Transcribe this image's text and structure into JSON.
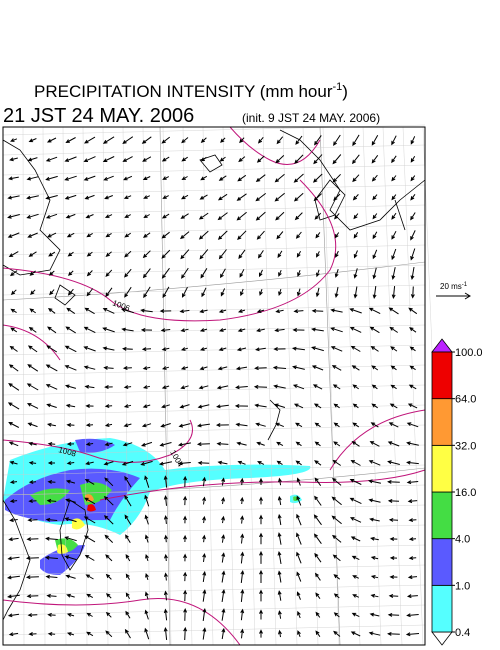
{
  "title": {
    "main": "PRECIPITATION INTENSITY (mm hour",
    "sup": "-1",
    "end": ")"
  },
  "valid_time": "21 JST 24 MAY. 2006",
  "init_time": "(init. 9 JST 24 MAY. 2006)",
  "vector_reference": {
    "text": "20 ms",
    "sup": "-1"
  },
  "isobar_labels": [
    "1006",
    "1008",
    "1004"
  ],
  "colorbar": {
    "levels": [
      {
        "value": 0.4,
        "label": "0.4"
      },
      {
        "value": 1,
        "label": "1.0"
      },
      {
        "value": 4,
        "label": "4.0"
      },
      {
        "value": 16,
        "label": "16.0"
      },
      {
        "value": 32,
        "label": "32.0"
      },
      {
        "value": 64,
        "label": "64.0"
      },
      {
        "value": 100,
        "label": "100.0"
      }
    ],
    "colors": [
      "#55ffff",
      "#5a5aff",
      "#44dd44",
      "#ffff44",
      "#ff9933",
      "#ee0000"
    ],
    "under_color": "#ffffff",
    "over_color": "#bb22ff"
  }
}
